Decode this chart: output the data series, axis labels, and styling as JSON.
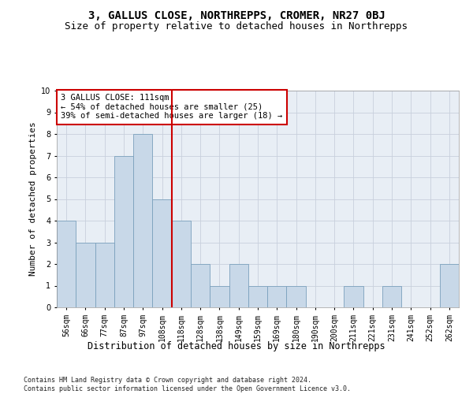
{
  "title": "3, GALLUS CLOSE, NORTHREPPS, CROMER, NR27 0BJ",
  "subtitle": "Size of property relative to detached houses in Northrepps",
  "xlabel": "Distribution of detached houses by size in Northrepps",
  "ylabel": "Number of detached properties",
  "bar_labels": [
    "56sqm",
    "66sqm",
    "77sqm",
    "87sqm",
    "97sqm",
    "108sqm",
    "118sqm",
    "128sqm",
    "138sqm",
    "149sqm",
    "159sqm",
    "169sqm",
    "180sqm",
    "190sqm",
    "200sqm",
    "211sqm",
    "221sqm",
    "231sqm",
    "241sqm",
    "252sqm",
    "262sqm"
  ],
  "bar_values": [
    4,
    3,
    3,
    7,
    8,
    5,
    4,
    2,
    1,
    2,
    1,
    1,
    1,
    0,
    0,
    1,
    0,
    1,
    0,
    0,
    2
  ],
  "bar_color": "#c8d8e8",
  "bar_edge_color": "#7aa0bc",
  "grid_color": "#c8d0dc",
  "vline_x": 5.5,
  "vline_color": "#cc0000",
  "annotation_text": "3 GALLUS CLOSE: 111sqm\n← 54% of detached houses are smaller (25)\n39% of semi-detached houses are larger (18) →",
  "annotation_box_color": "#ffffff",
  "annotation_box_edge": "#cc0000",
  "ylim": [
    0,
    10
  ],
  "yticks": [
    0,
    1,
    2,
    3,
    4,
    5,
    6,
    7,
    8,
    9,
    10
  ],
  "bg_color": "#e8eef5",
  "footer_text": "Contains HM Land Registry data © Crown copyright and database right 2024.\nContains public sector information licensed under the Open Government Licence v3.0.",
  "title_fontsize": 10,
  "subtitle_fontsize": 9,
  "xlabel_fontsize": 8.5,
  "ylabel_fontsize": 8,
  "tick_fontsize": 7,
  "annotation_fontsize": 7.5,
  "footer_fontsize": 6
}
